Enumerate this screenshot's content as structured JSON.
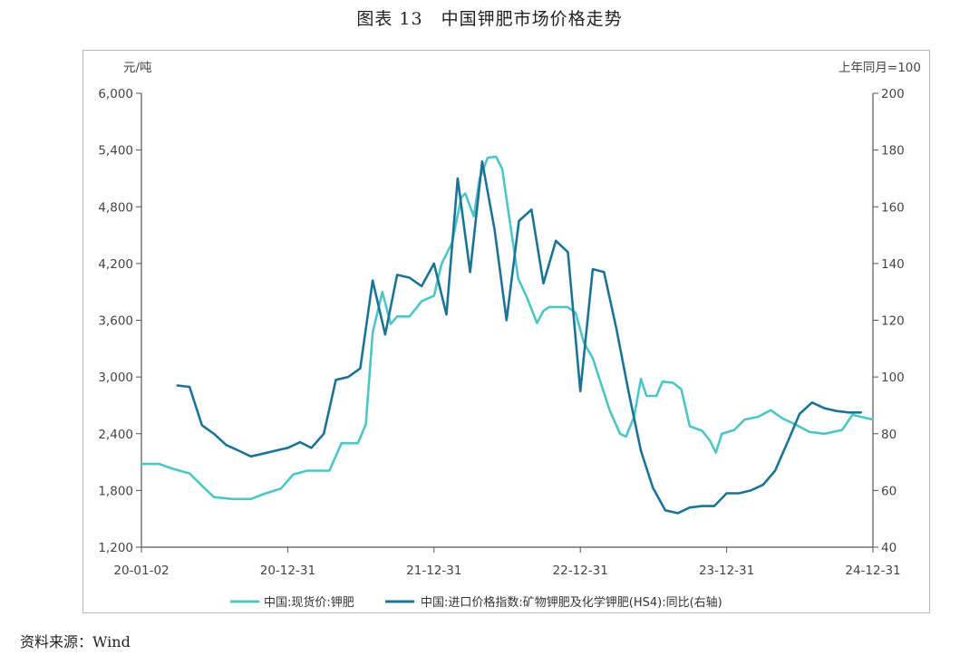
{
  "figure_title": "图表 13　中国钾肥市场价格走势",
  "source_note": "资料来源：Wind",
  "colors": {
    "left_series": "#4CC6C6",
    "right_series": "#1B7497",
    "axis": "#555555",
    "frame": "#b8b8b8"
  },
  "chart_data": {
    "type": "line",
    "left_unit": "元/吨",
    "right_unit": "上年同月=100",
    "left_ylim": [
      1200,
      6000
    ],
    "right_ylim": [
      40,
      200
    ],
    "left_ticks": [
      "6,000",
      "5,400",
      "4,800",
      "4,200",
      "3,600",
      "3,000",
      "2,400",
      "1,800",
      "1,200"
    ],
    "right_ticks": [
      "200",
      "180",
      "160",
      "140",
      "120",
      "100",
      "80",
      "60",
      "40"
    ],
    "x_tick_labels": [
      "20-01-02",
      "20-12-31",
      "21-12-31",
      "22-12-31",
      "23-12-31",
      "24-12-31"
    ],
    "x_range": [
      "2020-01-02",
      "2024-12-31"
    ],
    "grid": false,
    "legend_position": "bottom",
    "series": [
      {
        "name": "中国:现货价:钾肥",
        "axis": "left",
        "points": [
          [
            "2020-01-02",
            2080
          ],
          [
            "2020-02-15",
            2080
          ],
          [
            "2020-03-20",
            2030
          ],
          [
            "2020-05-01",
            1980
          ],
          [
            "2020-06-01",
            1850
          ],
          [
            "2020-07-01",
            1730
          ],
          [
            "2020-08-15",
            1710
          ],
          [
            "2020-10-01",
            1710
          ],
          [
            "2020-11-01",
            1760
          ],
          [
            "2020-12-15",
            1820
          ],
          [
            "2021-01-15",
            1970
          ],
          [
            "2021-02-20",
            2010
          ],
          [
            "2021-04-15",
            2010
          ],
          [
            "2021-05-15",
            2300
          ],
          [
            "2021-06-25",
            2300
          ],
          [
            "2021-07-15",
            2500
          ],
          [
            "2021-08-01",
            3470
          ],
          [
            "2021-08-25",
            3900
          ],
          [
            "2021-09-15",
            3560
          ],
          [
            "2021-10-01",
            3640
          ],
          [
            "2021-11-01",
            3640
          ],
          [
            "2021-12-01",
            3800
          ],
          [
            "2022-01-01",
            3860
          ],
          [
            "2022-01-20",
            4200
          ],
          [
            "2022-02-15",
            4420
          ],
          [
            "2022-03-10",
            4900
          ],
          [
            "2022-03-20",
            4940
          ],
          [
            "2022-04-10",
            4700
          ],
          [
            "2022-04-25",
            5100
          ],
          [
            "2022-05-15",
            5320
          ],
          [
            "2022-06-05",
            5330
          ],
          [
            "2022-06-20",
            5200
          ],
          [
            "2022-07-10",
            4620
          ],
          [
            "2022-07-30",
            4040
          ],
          [
            "2022-08-20",
            3850
          ],
          [
            "2022-09-15",
            3570
          ],
          [
            "2022-10-01",
            3700
          ],
          [
            "2022-10-15",
            3740
          ],
          [
            "2022-11-30",
            3740
          ],
          [
            "2022-12-20",
            3680
          ],
          [
            "2023-01-10",
            3360
          ],
          [
            "2023-02-01",
            3200
          ],
          [
            "2023-02-20",
            2950
          ],
          [
            "2023-03-15",
            2650
          ],
          [
            "2023-04-10",
            2400
          ],
          [
            "2023-04-25",
            2370
          ],
          [
            "2023-05-15",
            2580
          ],
          [
            "2023-06-01",
            2980
          ],
          [
            "2023-06-15",
            2800
          ],
          [
            "2023-07-10",
            2800
          ],
          [
            "2023-07-25",
            2950
          ],
          [
            "2023-08-20",
            2940
          ],
          [
            "2023-09-10",
            2870
          ],
          [
            "2023-10-01",
            2480
          ],
          [
            "2023-11-01",
            2430
          ],
          [
            "2023-11-20",
            2330
          ],
          [
            "2023-12-05",
            2200
          ],
          [
            "2023-12-20",
            2400
          ],
          [
            "2024-01-20",
            2440
          ],
          [
            "2024-02-15",
            2550
          ],
          [
            "2024-03-20",
            2580
          ],
          [
            "2024-04-20",
            2650
          ],
          [
            "2024-05-20",
            2560
          ],
          [
            "2024-06-20",
            2500
          ],
          [
            "2024-07-25",
            2420
          ],
          [
            "2024-09-01",
            2400
          ],
          [
            "2024-10-15",
            2440
          ],
          [
            "2024-11-10",
            2600
          ],
          [
            "2024-12-31",
            2550
          ]
        ]
      },
      {
        "name": "中国:进口价格指数:矿物钾肥及化学钾肥(HS4):同比(右轴)",
        "axis": "right",
        "points": [
          [
            "2020-04-01",
            97
          ],
          [
            "2020-05-01",
            96.5
          ],
          [
            "2020-06-01",
            83
          ],
          [
            "2020-07-01",
            80
          ],
          [
            "2020-08-01",
            76
          ],
          [
            "2020-09-01",
            74
          ],
          [
            "2020-10-01",
            72
          ],
          [
            "2020-11-01",
            73
          ],
          [
            "2020-12-01",
            74
          ],
          [
            "2021-01-01",
            75
          ],
          [
            "2021-02-01",
            77
          ],
          [
            "2021-03-01",
            75
          ],
          [
            "2021-04-01",
            80
          ],
          [
            "2021-05-01",
            99
          ],
          [
            "2021-06-01",
            100
          ],
          [
            "2021-07-01",
            103
          ],
          [
            "2021-08-01",
            134
          ],
          [
            "2021-09-01",
            115
          ],
          [
            "2021-10-01",
            136
          ],
          [
            "2021-11-01",
            135
          ],
          [
            "2021-12-01",
            132
          ],
          [
            "2022-01-01",
            140
          ],
          [
            "2022-02-01",
            122
          ],
          [
            "2022-03-01",
            170
          ],
          [
            "2022-04-01",
            137
          ],
          [
            "2022-05-01",
            176
          ],
          [
            "2022-06-01",
            152
          ],
          [
            "2022-07-01",
            120
          ],
          [
            "2022-08-01",
            155
          ],
          [
            "2022-09-01",
            159
          ],
          [
            "2022-10-01",
            133
          ],
          [
            "2022-11-01",
            148
          ],
          [
            "2022-12-01",
            144
          ],
          [
            "2023-01-01",
            95
          ],
          [
            "2023-02-01",
            138
          ],
          [
            "2023-03-01",
            137
          ],
          [
            "2023-04-01",
            117
          ],
          [
            "2023-05-01",
            95
          ],
          [
            "2023-06-01",
            74
          ],
          [
            "2023-07-01",
            61
          ],
          [
            "2023-08-01",
            53
          ],
          [
            "2023-09-01",
            52
          ],
          [
            "2023-10-01",
            54
          ],
          [
            "2023-11-01",
            54.5
          ],
          [
            "2023-12-01",
            54.5
          ],
          [
            "2024-01-01",
            59
          ],
          [
            "2024-02-01",
            59
          ],
          [
            "2024-03-01",
            60
          ],
          [
            "2024-04-01",
            62
          ],
          [
            "2024-05-01",
            67
          ],
          [
            "2024-06-01",
            77
          ],
          [
            "2024-07-01",
            87
          ],
          [
            "2024-08-01",
            91
          ],
          [
            "2024-09-01",
            89
          ],
          [
            "2024-10-01",
            88
          ],
          [
            "2024-11-01",
            87.5
          ],
          [
            "2024-12-01",
            87.5
          ]
        ]
      }
    ]
  }
}
